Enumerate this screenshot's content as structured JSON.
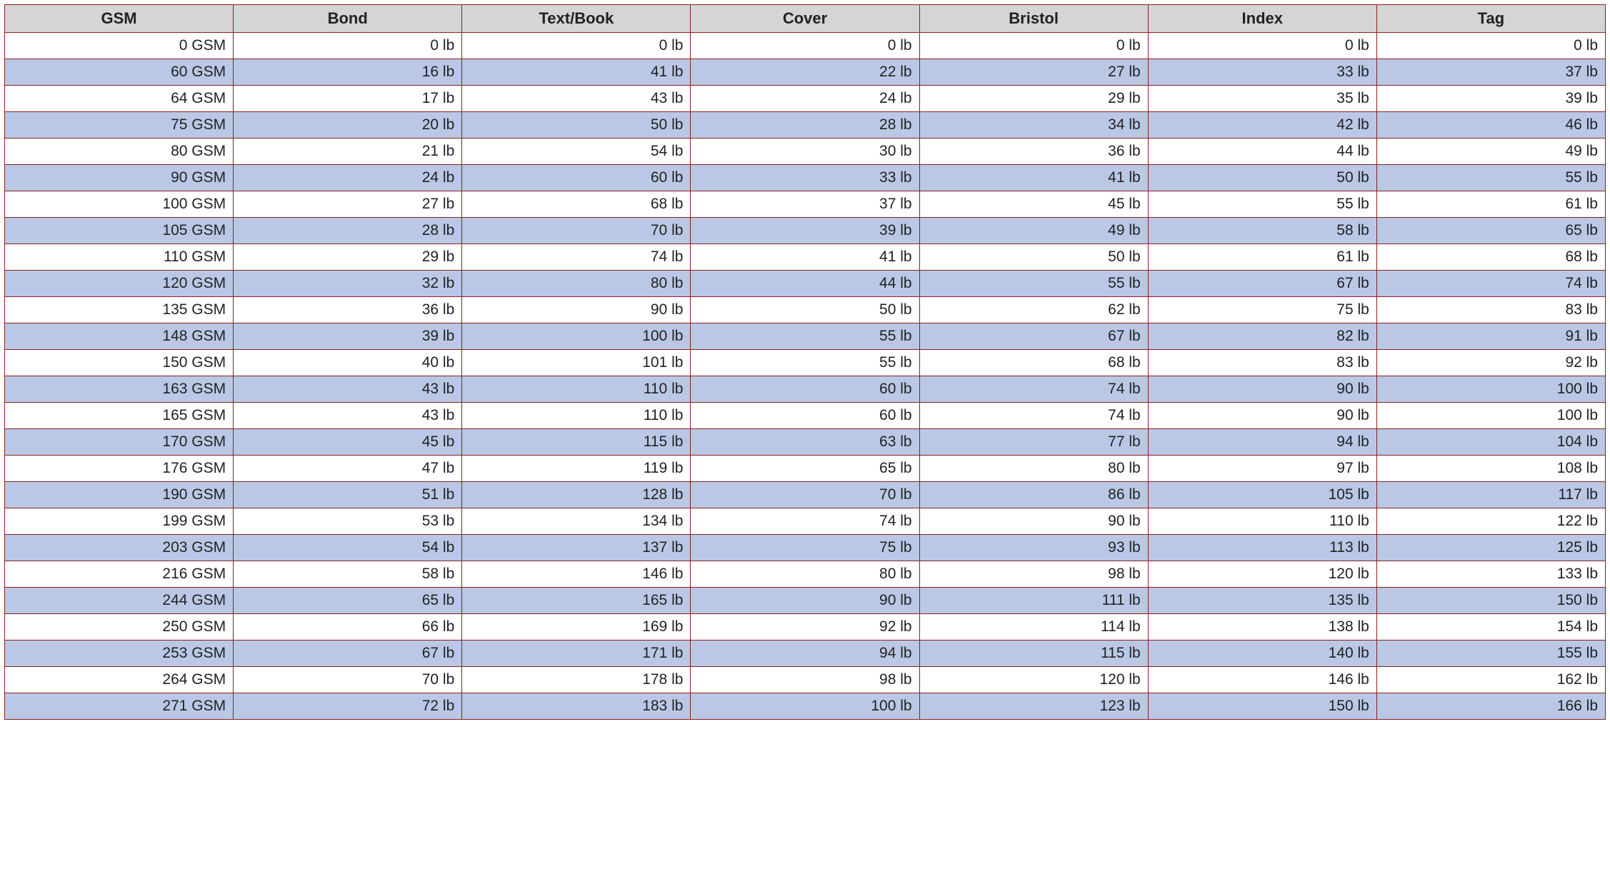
{
  "table": {
    "type": "table",
    "columns": [
      "GSM",
      "Bond",
      "Text/Book",
      "Cover",
      "Bristol",
      "Index",
      "Tag"
    ],
    "header_bg_color": "#d5d5d5",
    "row_bg_odd": "#ffffff",
    "row_bg_even": "#bac8e6",
    "border_color": "#8a1f1f",
    "text_color": "#222222",
    "font_family": "Verdana, Geneva, Tahoma, sans-serif",
    "header_fontsize_pt": 16,
    "cell_fontsize_pt": 15,
    "cell_align": "right",
    "header_align": "center",
    "column_widths_percent": [
      14.3,
      14.3,
      14.3,
      14.3,
      14.3,
      14.3,
      14.2
    ],
    "col0_unit": "GSM",
    "value_unit": "lb",
    "rows": [
      [
        0,
        0,
        0,
        0,
        0,
        0,
        0
      ],
      [
        60,
        16,
        41,
        22,
        27,
        33,
        37
      ],
      [
        64,
        17,
        43,
        24,
        29,
        35,
        39
      ],
      [
        75,
        20,
        50,
        28,
        34,
        42,
        46
      ],
      [
        80,
        21,
        54,
        30,
        36,
        44,
        49
      ],
      [
        90,
        24,
        60,
        33,
        41,
        50,
        55
      ],
      [
        100,
        27,
        68,
        37,
        45,
        55,
        61
      ],
      [
        105,
        28,
        70,
        39,
        49,
        58,
        65
      ],
      [
        110,
        29,
        74,
        41,
        50,
        61,
        68
      ],
      [
        120,
        32,
        80,
        44,
        55,
        67,
        74
      ],
      [
        135,
        36,
        90,
        50,
        62,
        75,
        83
      ],
      [
        148,
        39,
        100,
        55,
        67,
        82,
        91
      ],
      [
        150,
        40,
        101,
        55,
        68,
        83,
        92
      ],
      [
        163,
        43,
        110,
        60,
        74,
        90,
        100
      ],
      [
        165,
        43,
        110,
        60,
        74,
        90,
        100
      ],
      [
        170,
        45,
        115,
        63,
        77,
        94,
        104
      ],
      [
        176,
        47,
        119,
        65,
        80,
        97,
        108
      ],
      [
        190,
        51,
        128,
        70,
        86,
        105,
        117
      ],
      [
        199,
        53,
        134,
        74,
        90,
        110,
        122
      ],
      [
        203,
        54,
        137,
        75,
        93,
        113,
        125
      ],
      [
        216,
        58,
        146,
        80,
        98,
        120,
        133
      ],
      [
        244,
        65,
        165,
        90,
        111,
        135,
        150
      ],
      [
        250,
        66,
        169,
        92,
        114,
        138,
        154
      ],
      [
        253,
        67,
        171,
        94,
        115,
        140,
        155
      ],
      [
        264,
        70,
        178,
        98,
        120,
        146,
        162
      ],
      [
        271,
        72,
        183,
        100,
        123,
        150,
        166
      ]
    ]
  }
}
